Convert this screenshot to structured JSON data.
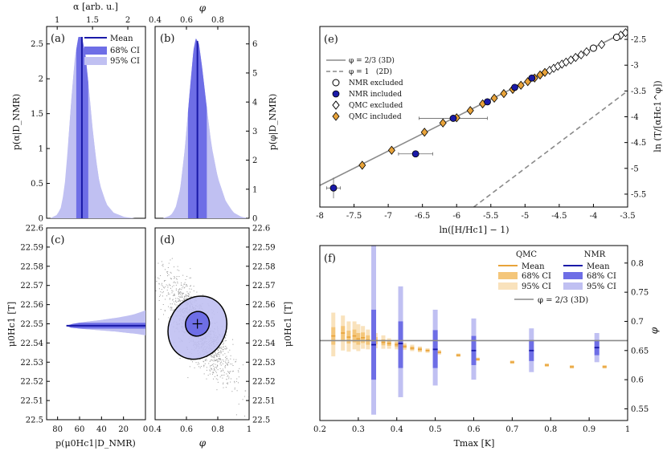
{
  "colors": {
    "qmc": "#e8a33a",
    "qmc68": "#f4c67a",
    "qmc95": "#f9e2bc",
    "nmr": "#1a1aa8",
    "nmr68": "#6e6ee6",
    "nmr95": "#c0c0f2",
    "ref": "#8a8a8a",
    "frame": "#000000"
  },
  "chart_data": [
    {
      "id": "a",
      "panel_label": "(a)",
      "type": "area",
      "title": "",
      "top_axis_label": "α [arb. u.]",
      "top_ticks": [
        "1",
        "1.5",
        "2"
      ],
      "ylabel": "p(α|D_NMR)",
      "yticks": [
        "0",
        "0.5",
        "1",
        "1.5",
        "2",
        "2.5"
      ],
      "ylim": [
        0,
        2.75
      ],
      "xlim": [
        0.85,
        2.25
      ],
      "mean": 1.35,
      "ci68": [
        1.27,
        1.44
      ],
      "ci95": [
        1.16,
        1.6
      ],
      "density": [
        [
          0.9,
          0
        ],
        [
          1.0,
          0.05
        ],
        [
          1.05,
          0.15
        ],
        [
          1.1,
          0.4
        ],
        [
          1.15,
          1.0
        ],
        [
          1.2,
          1.7
        ],
        [
          1.25,
          2.3
        ],
        [
          1.3,
          2.6
        ],
        [
          1.35,
          2.6
        ],
        [
          1.4,
          2.35
        ],
        [
          1.45,
          1.85
        ],
        [
          1.5,
          1.3
        ],
        [
          1.55,
          0.85
        ],
        [
          1.6,
          0.5
        ],
        [
          1.7,
          0.2
        ],
        [
          1.8,
          0.08
        ],
        [
          1.95,
          0.02
        ],
        [
          2.1,
          0
        ]
      ],
      "legend": [
        "Mean",
        "68% CI",
        "95% CI"
      ]
    },
    {
      "id": "b",
      "panel_label": "(b)",
      "type": "area",
      "top_axis_label": "φ",
      "top_ticks": [
        "0.4",
        "0.6",
        "0.8"
      ],
      "right_label": "p(φ|D_NMR)",
      "yticks": [
        "0",
        "1",
        "2",
        "3",
        "4",
        "5",
        "6"
      ],
      "ylim": [
        0,
        6.6
      ],
      "xlim": [
        0.4,
        1.0
      ],
      "mean": 0.67,
      "ci68": [
        0.61,
        0.73
      ],
      "ci95": [
        0.54,
        0.85
      ],
      "density": [
        [
          0.45,
          0
        ],
        [
          0.5,
          0.1
        ],
        [
          0.53,
          0.35
        ],
        [
          0.56,
          1.0
        ],
        [
          0.59,
          2.4
        ],
        [
          0.62,
          4.3
        ],
        [
          0.645,
          5.8
        ],
        [
          0.66,
          6.2
        ],
        [
          0.68,
          6.0
        ],
        [
          0.7,
          5.2
        ],
        [
          0.73,
          3.8
        ],
        [
          0.76,
          2.5
        ],
        [
          0.8,
          1.4
        ],
        [
          0.85,
          0.6
        ],
        [
          0.9,
          0.2
        ],
        [
          0.95,
          0.05
        ],
        [
          1.0,
          0
        ]
      ]
    },
    {
      "id": "c",
      "panel_label": "(c)",
      "type": "area",
      "orientation": "horizontal",
      "xlabel": "p(μ0Hc1|D_NMR)",
      "xticks": [
        "80",
        "60",
        "40",
        "20",
        "0"
      ],
      "ylabel": "μ0Hc1 [T]",
      "yticks": [
        "22.5",
        "22.51",
        "22.52",
        "22.53",
        "22.54",
        "22.55",
        "22.56",
        "22.57",
        "22.58",
        "22.59",
        "22.6"
      ],
      "ylim": [
        22.5,
        22.6
      ],
      "mean": 22.549,
      "ci68": [
        22.5475,
        22.5505
      ],
      "ci95": [
        22.545,
        22.553
      ],
      "density": [
        [
          22.544,
          0
        ],
        [
          22.5445,
          5
        ],
        [
          22.545,
          12
        ],
        [
          22.546,
          28
        ],
        [
          22.547,
          50
        ],
        [
          22.548,
          68
        ],
        [
          22.549,
          72
        ],
        [
          22.55,
          66
        ],
        [
          22.551,
          55
        ],
        [
          22.552,
          40
        ],
        [
          22.553,
          28
        ],
        [
          22.554,
          18
        ],
        [
          22.555,
          10
        ],
        [
          22.556,
          5
        ],
        [
          22.557,
          0
        ]
      ]
    },
    {
      "id": "d",
      "panel_label": "(d)",
      "type": "scatter",
      "xlabel": "φ",
      "xticks": [
        "0.4",
        "0.6",
        "0.8",
        "1"
      ],
      "xlim": [
        0.4,
        1.0
      ],
      "right_label": "μ0Hc1 [T]",
      "yticks": [
        "22.5",
        "22.51",
        "22.52",
        "22.53",
        "22.54",
        "22.55",
        "22.56",
        "22.57",
        "22.58",
        "22.59",
        "22.6"
      ],
      "ylim": [
        22.5,
        22.6
      ],
      "mean": [
        0.67,
        22.55
      ],
      "contour68": {
        "center": [
          0.67,
          22.55
        ],
        "rx": 0.075,
        "ry": 0.0065
      },
      "contour95": {
        "center": [
          0.67,
          22.548
        ],
        "rx": 0.18,
        "ry": 0.017
      }
    },
    {
      "id": "e",
      "panel_label": "(e)",
      "type": "scatter",
      "xlabel": "ln([H/Hc1] − 1)",
      "xticks": [
        "-8",
        "-7.5",
        "-7",
        "-6.5",
        "-6",
        "-5.5",
        "-5",
        "-4.5",
        "-4",
        "-3.5"
      ],
      "xlim": [
        -8,
        -3.5
      ],
      "right_label": "ln (T/[αHc1^φ])",
      "yticks": [
        "-5.5",
        "-5",
        "-4.5",
        "-4",
        "-3.5",
        "-3",
        "-2.5"
      ],
      "ylim": [
        -5.75,
        -2.25
      ],
      "legend": [
        "φ = 2/3 (3D)",
        "φ = 1   (2D)",
        "NMR excluded",
        "NMR included",
        "QMC excluded",
        "QMC included"
      ],
      "line3d": [
        [
          -8,
          -5.33
        ],
        [
          -3.5,
          -2.33
        ]
      ],
      "line2d": [
        [
          -5.75,
          -5.75
        ],
        [
          -3.5,
          -3.5
        ]
      ],
      "nmr_included": [
        [
          -7.8,
          -5.38
        ],
        [
          -6.6,
          -4.72
        ],
        [
          -6.05,
          -4.03
        ],
        [
          -5.55,
          -3.71
        ],
        [
          -5.15,
          -3.43
        ],
        [
          -4.9,
          -3.25
        ]
      ],
      "nmr_excluded": [
        [
          -4.0,
          -2.67
        ],
        [
          -3.66,
          -2.46
        ]
      ],
      "nmr_xerr": [
        [
          -7.8,
          0.1
        ],
        [
          -6.6,
          0.25
        ],
        [
          -6.05,
          0.5
        ]
      ],
      "qmc_included": [
        [
          -7.38,
          -4.94
        ],
        [
          -6.95,
          -4.65
        ],
        [
          -6.47,
          -4.3
        ],
        [
          -6.2,
          -4.12
        ],
        [
          -6.0,
          -4.02
        ],
        [
          -5.8,
          -3.88
        ],
        [
          -5.62,
          -3.75
        ],
        [
          -5.45,
          -3.64
        ],
        [
          -5.31,
          -3.55
        ],
        [
          -5.18,
          -3.47
        ],
        [
          -5.06,
          -3.39
        ],
        [
          -4.96,
          -3.32
        ],
        [
          -4.86,
          -3.25
        ],
        [
          -4.78,
          -3.19
        ],
        [
          -4.71,
          -3.14
        ]
      ],
      "qmc_excluded": [
        [
          -4.64,
          -3.1
        ],
        [
          -4.58,
          -3.06
        ],
        [
          -4.52,
          -3.02
        ],
        [
          -4.46,
          -2.98
        ],
        [
          -4.4,
          -2.94
        ],
        [
          -4.33,
          -2.9
        ],
        [
          -4.26,
          -2.85
        ],
        [
          -4.18,
          -2.8
        ],
        [
          -4.1,
          -2.74
        ],
        [
          -3.88,
          -2.6
        ],
        [
          -3.6,
          -2.42
        ],
        [
          -3.53,
          -2.37
        ]
      ]
    },
    {
      "id": "f",
      "panel_label": "(f)",
      "type": "bar",
      "xlabel": "Tmax [K]",
      "xticks": [
        "0.2",
        "0.3",
        "0.4",
        "0.5",
        "0.6",
        "0.7",
        "0.8",
        "0.9",
        "1"
      ],
      "xlim": [
        0.2,
        1.0
      ],
      "right_label": "φ",
      "yticks": [
        "0.55",
        "0.6",
        "0.65",
        "0.7",
        "0.75",
        "0.8"
      ],
      "ylim": [
        0.53,
        0.83
      ],
      "reference": 0.667,
      "legend_qmc_title": "QMC",
      "legend_nmr_title": "NMR",
      "legend": [
        "Mean",
        "68% CI",
        "95% CI",
        "φ = 2/3 (3D)"
      ],
      "qmc": [
        {
          "t": 0.235,
          "mean": 0.675,
          "ci68": [
            0.66,
            0.69
          ],
          "ci95": [
            0.64,
            0.715
          ]
        },
        {
          "t": 0.26,
          "mean": 0.68,
          "ci68": [
            0.668,
            0.692
          ],
          "ci95": [
            0.65,
            0.71
          ]
        },
        {
          "t": 0.275,
          "mean": 0.673,
          "ci68": [
            0.662,
            0.684
          ],
          "ci95": [
            0.648,
            0.7
          ]
        },
        {
          "t": 0.29,
          "mean": 0.675,
          "ci68": [
            0.664,
            0.686
          ],
          "ci95": [
            0.652,
            0.7
          ]
        },
        {
          "t": 0.3,
          "mean": 0.67,
          "ci68": [
            0.66,
            0.68
          ],
          "ci95": [
            0.649,
            0.695
          ]
        },
        {
          "t": 0.312,
          "mean": 0.672,
          "ci68": [
            0.663,
            0.681
          ],
          "ci95": [
            0.653,
            0.692
          ]
        },
        {
          "t": 0.325,
          "mean": 0.668,
          "ci68": [
            0.66,
            0.676
          ],
          "ci95": [
            0.652,
            0.686
          ]
        },
        {
          "t": 0.345,
          "mean": 0.667,
          "ci68": [
            0.661,
            0.673
          ],
          "ci95": [
            0.654,
            0.68
          ]
        },
        {
          "t": 0.365,
          "mean": 0.664,
          "ci68": [
            0.659,
            0.669
          ],
          "ci95": [
            0.653,
            0.676
          ]
        },
        {
          "t": 0.38,
          "mean": 0.662,
          "ci68": [
            0.658,
            0.666
          ],
          "ci95": [
            0.653,
            0.671
          ]
        },
        {
          "t": 0.4,
          "mean": 0.66,
          "ci68": [
            0.656,
            0.664
          ],
          "ci95": [
            0.652,
            0.668
          ]
        },
        {
          "t": 0.42,
          "mean": 0.657,
          "ci68": [
            0.654,
            0.66
          ],
          "ci95": [
            0.651,
            0.663
          ]
        },
        {
          "t": 0.44,
          "mean": 0.654,
          "ci68": [
            0.651,
            0.657
          ],
          "ci95": [
            0.649,
            0.66
          ]
        },
        {
          "t": 0.46,
          "mean": 0.652,
          "ci68": [
            0.649,
            0.655
          ],
          "ci95": [
            0.647,
            0.657
          ]
        },
        {
          "t": 0.48,
          "mean": 0.65,
          "ci68": [
            0.648,
            0.652
          ],
          "ci95": [
            0.646,
            0.654
          ]
        },
        {
          "t": 0.51,
          "mean": 0.647,
          "ci68": [
            0.645,
            0.649
          ],
          "ci95": [
            0.643,
            0.651
          ]
        },
        {
          "t": 0.56,
          "mean": 0.642,
          "ci68": [
            0.64,
            0.644
          ],
          "ci95": [
            0.639,
            0.645
          ]
        },
        {
          "t": 0.61,
          "mean": 0.635,
          "ci68": [
            0.633,
            0.637
          ],
          "ci95": [
            0.632,
            0.638
          ]
        },
        {
          "t": 0.7,
          "mean": 0.63,
          "ci68": [
            0.628,
            0.632
          ],
          "ci95": [
            0.627,
            0.633
          ]
        },
        {
          "t": 0.79,
          "mean": 0.625,
          "ci68": [
            0.623,
            0.627
          ],
          "ci95": [
            0.622,
            0.628
          ]
        },
        {
          "t": 0.855,
          "mean": 0.622,
          "ci68": [
            0.62,
            0.624
          ],
          "ci95": [
            0.619,
            0.625
          ]
        },
        {
          "t": 0.94,
          "mean": 0.622,
          "ci68": [
            0.62,
            0.624
          ],
          "ci95": [
            0.619,
            0.625
          ]
        }
      ],
      "nmr": [
        {
          "t": 0.34,
          "mean": 0.66,
          "ci68": [
            0.6,
            0.72
          ],
          "ci95": [
            0.54,
            0.83
          ]
        },
        {
          "t": 0.41,
          "mean": 0.662,
          "ci68": [
            0.62,
            0.7
          ],
          "ci95": [
            0.57,
            0.76
          ]
        },
        {
          "t": 0.5,
          "mean": 0.652,
          "ci68": [
            0.62,
            0.685
          ],
          "ci95": [
            0.59,
            0.72
          ]
        },
        {
          "t": 0.6,
          "mean": 0.65,
          "ci68": [
            0.625,
            0.675
          ],
          "ci95": [
            0.6,
            0.705
          ]
        },
        {
          "t": 0.75,
          "mean": 0.65,
          "ci68": [
            0.632,
            0.668
          ],
          "ci95": [
            0.613,
            0.688
          ]
        },
        {
          "t": 0.92,
          "mean": 0.655,
          "ci68": [
            0.642,
            0.668
          ],
          "ci95": [
            0.63,
            0.68
          ]
        }
      ]
    }
  ]
}
